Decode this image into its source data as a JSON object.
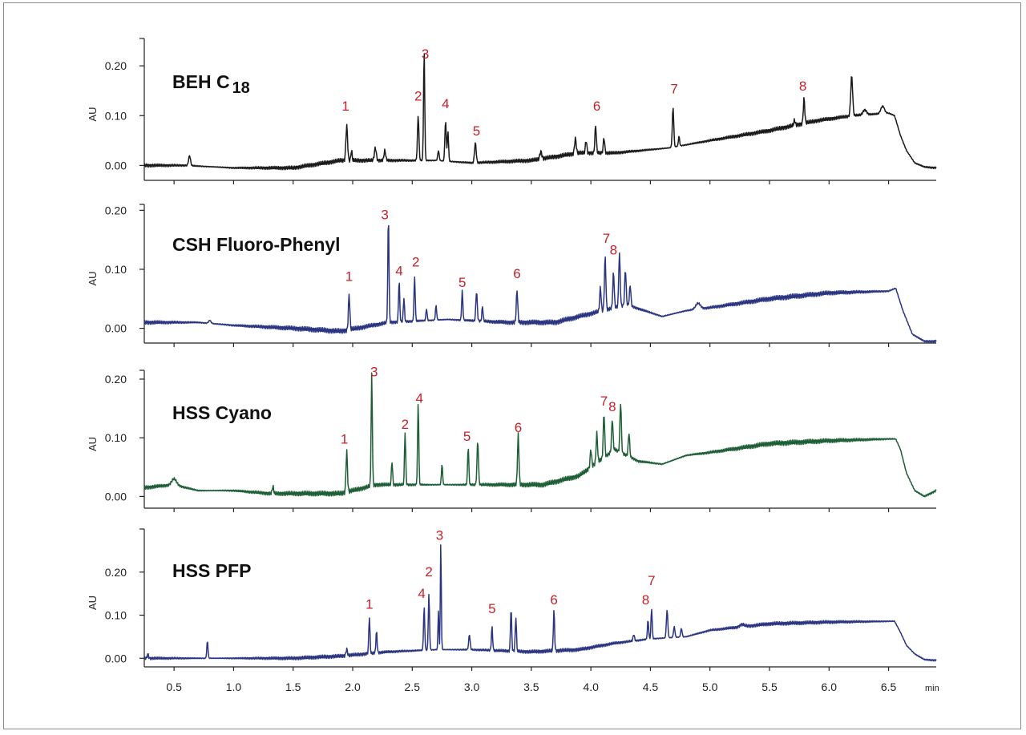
{
  "chart_data": [
    {
      "type": "line",
      "title": "BEH C",
      "title_sub": "18",
      "ylabel": "AU",
      "yticks": [
        0.0,
        0.1,
        0.2
      ],
      "ytick_labels": [
        "0.00",
        "0.10",
        "0.20"
      ],
      "ylim": [
        -0.03,
        0.255
      ],
      "color": "#1a1a1a",
      "baseline": [
        [
          0.25,
          0.0
        ],
        [
          0.6,
          0.0
        ],
        [
          1.0,
          -0.005
        ],
        [
          1.5,
          -0.005
        ],
        [
          1.9,
          0.01
        ],
        [
          2.3,
          0.01
        ],
        [
          2.7,
          0.01
        ],
        [
          3.0,
          0.005
        ],
        [
          3.5,
          0.01
        ],
        [
          3.9,
          0.025
        ],
        [
          4.2,
          0.025
        ],
        [
          4.65,
          0.035
        ],
        [
          5.0,
          0.05
        ],
        [
          5.5,
          0.07
        ],
        [
          5.9,
          0.09
        ],
        [
          6.2,
          0.1
        ],
        [
          6.5,
          0.105
        ],
        [
          6.55,
          0.1
        ],
        [
          6.6,
          0.06
        ],
        [
          6.65,
          0.03
        ],
        [
          6.72,
          0.005
        ],
        [
          6.8,
          -0.003
        ],
        [
          6.9,
          -0.005
        ]
      ],
      "peaks": [
        [
          0.63,
          0.02,
          0.008
        ],
        [
          1.95,
          0.07,
          0.007
        ],
        [
          1.99,
          0.02,
          0.005
        ],
        [
          2.19,
          0.025,
          0.008
        ],
        [
          2.27,
          0.02,
          0.007
        ],
        [
          2.55,
          0.09,
          0.006
        ],
        [
          2.6,
          0.22,
          0.005
        ],
        [
          2.72,
          0.02,
          0.006
        ],
        [
          2.78,
          0.08,
          0.006
        ],
        [
          2.8,
          0.06,
          0.005
        ],
        [
          3.03,
          0.04,
          0.007
        ],
        [
          3.58,
          0.015,
          0.008
        ],
        [
          3.87,
          0.03,
          0.007
        ],
        [
          3.96,
          0.025,
          0.006
        ],
        [
          4.04,
          0.055,
          0.006
        ],
        [
          4.11,
          0.03,
          0.006
        ],
        [
          4.69,
          0.08,
          0.006
        ],
        [
          4.74,
          0.02,
          0.005
        ],
        [
          5.79,
          0.05,
          0.006
        ],
        [
          5.71,
          0.01,
          0.006
        ],
        [
          6.19,
          0.08,
          0.008
        ],
        [
          6.3,
          0.01,
          0.015
        ],
        [
          6.45,
          0.015,
          0.015
        ]
      ],
      "peak_labels": [
        {
          "label": "1",
          "x": 1.94,
          "y": 0.11
        },
        {
          "label": "3",
          "x": 2.61,
          "y": 0.215
        },
        {
          "label": "2",
          "x": 2.55,
          "y": 0.13
        },
        {
          "label": "4",
          "x": 2.78,
          "y": 0.115
        },
        {
          "label": "5",
          "x": 3.04,
          "y": 0.06
        },
        {
          "label": "6",
          "x": 4.05,
          "y": 0.11
        },
        {
          "label": "7",
          "x": 4.7,
          "y": 0.145
        },
        {
          "label": "8",
          "x": 5.78,
          "y": 0.15
        }
      ]
    },
    {
      "type": "line",
      "title": "CSH Fluoro-Phenyl",
      "ylabel": "AU",
      "yticks": [
        0.0,
        0.1,
        0.2
      ],
      "ytick_labels": [
        "0.00",
        "0.10",
        "0.20"
      ],
      "ylim": [
        -0.025,
        0.21
      ],
      "color": "#2a3480",
      "baseline": [
        [
          0.25,
          0.01
        ],
        [
          0.7,
          0.01
        ],
        [
          1.0,
          0.005
        ],
        [
          1.5,
          0.0
        ],
        [
          1.9,
          -0.005
        ],
        [
          2.3,
          0.01
        ],
        [
          2.8,
          0.015
        ],
        [
          3.3,
          0.01
        ],
        [
          3.7,
          0.01
        ],
        [
          4.0,
          0.025
        ],
        [
          4.3,
          0.04
        ],
        [
          4.6,
          0.02
        ],
        [
          4.8,
          0.03
        ],
        [
          5.0,
          0.035
        ],
        [
          5.5,
          0.05
        ],
        [
          6.0,
          0.06
        ],
        [
          6.5,
          0.063
        ],
        [
          6.56,
          0.068
        ],
        [
          6.62,
          0.03
        ],
        [
          6.7,
          -0.01
        ],
        [
          6.8,
          -0.022
        ],
        [
          6.9,
          -0.022
        ]
      ],
      "peaks": [
        [
          0.8,
          0.005,
          0.01
        ],
        [
          1.97,
          0.06,
          0.006
        ],
        [
          2.3,
          0.18,
          0.005
        ],
        [
          2.39,
          0.07,
          0.005
        ],
        [
          2.43,
          0.04,
          0.005
        ],
        [
          2.52,
          0.075,
          0.005
        ],
        [
          2.62,
          0.02,
          0.005
        ],
        [
          2.7,
          0.025,
          0.005
        ],
        [
          2.92,
          0.05,
          0.005
        ],
        [
          3.04,
          0.05,
          0.006
        ],
        [
          3.09,
          0.025,
          0.005
        ],
        [
          3.38,
          0.055,
          0.006
        ],
        [
          4.08,
          0.04,
          0.006
        ],
        [
          4.12,
          0.09,
          0.006
        ],
        [
          4.19,
          0.06,
          0.006
        ],
        [
          4.24,
          0.09,
          0.006
        ],
        [
          4.29,
          0.06,
          0.006
        ],
        [
          4.33,
          0.035,
          0.006
        ],
        [
          4.9,
          0.01,
          0.02
        ]
      ],
      "peak_labels": [
        {
          "label": "1",
          "x": 1.97,
          "y": 0.08
        },
        {
          "label": "3",
          "x": 2.27,
          "y": 0.185
        },
        {
          "label": "4",
          "x": 2.39,
          "y": 0.09
        },
        {
          "label": "2",
          "x": 2.53,
          "y": 0.105
        },
        {
          "label": "5",
          "x": 2.92,
          "y": 0.07
        },
        {
          "label": "6",
          "x": 3.38,
          "y": 0.085
        },
        {
          "label": "7",
          "x": 4.13,
          "y": 0.145
        },
        {
          "label": "8",
          "x": 4.19,
          "y": 0.125
        }
      ]
    },
    {
      "type": "line",
      "title": "HSS Cyano",
      "ylabel": "AU",
      "yticks": [
        0.0,
        0.1,
        0.2
      ],
      "ytick_labels": [
        "0.00",
        "0.10",
        "0.20"
      ],
      "ylim": [
        -0.02,
        0.215
      ],
      "color": "#1e5e36",
      "baseline": [
        [
          0.25,
          0.015
        ],
        [
          0.5,
          0.02
        ],
        [
          0.7,
          0.01
        ],
        [
          1.0,
          0.01
        ],
        [
          1.3,
          0.005
        ],
        [
          1.6,
          0.005
        ],
        [
          1.9,
          0.005
        ],
        [
          2.2,
          0.02
        ],
        [
          2.7,
          0.02
        ],
        [
          3.2,
          0.02
        ],
        [
          3.6,
          0.02
        ],
        [
          3.9,
          0.035
        ],
        [
          4.2,
          0.08
        ],
        [
          4.4,
          0.06
        ],
        [
          4.6,
          0.055
        ],
        [
          4.8,
          0.07
        ],
        [
          5.0,
          0.075
        ],
        [
          5.5,
          0.09
        ],
        [
          6.0,
          0.095
        ],
        [
          6.5,
          0.098
        ],
        [
          6.56,
          0.098
        ],
        [
          6.6,
          0.08
        ],
        [
          6.65,
          0.04
        ],
        [
          6.72,
          0.01
        ],
        [
          6.8,
          0.0
        ],
        [
          6.9,
          0.01
        ]
      ],
      "peaks": [
        [
          0.5,
          0.01,
          0.02
        ],
        [
          1.33,
          0.012,
          0.006
        ],
        [
          1.95,
          0.07,
          0.006
        ],
        [
          2.16,
          0.19,
          0.005
        ],
        [
          2.33,
          0.04,
          0.005
        ],
        [
          2.44,
          0.09,
          0.005
        ],
        [
          2.55,
          0.14,
          0.005
        ],
        [
          2.75,
          0.035,
          0.005
        ],
        [
          2.97,
          0.065,
          0.005
        ],
        [
          3.05,
          0.075,
          0.006
        ],
        [
          3.39,
          0.085,
          0.006
        ],
        [
          4.0,
          0.03,
          0.006
        ],
        [
          4.05,
          0.05,
          0.006
        ],
        [
          4.11,
          0.075,
          0.006
        ],
        [
          4.18,
          0.055,
          0.006
        ],
        [
          4.25,
          0.085,
          0.006
        ],
        [
          4.32,
          0.04,
          0.006
        ]
      ],
      "peak_labels": [
        {
          "label": "1",
          "x": 1.93,
          "y": 0.09
        },
        {
          "label": "3",
          "x": 2.18,
          "y": 0.205
        },
        {
          "label": "2",
          "x": 2.44,
          "y": 0.115
        },
        {
          "label": "4",
          "x": 2.56,
          "y": 0.16
        },
        {
          "label": "5",
          "x": 2.96,
          "y": 0.095
        },
        {
          "label": "6",
          "x": 3.39,
          "y": 0.11
        },
        {
          "label": "7",
          "x": 4.11,
          "y": 0.155
        },
        {
          "label": "8",
          "x": 4.18,
          "y": 0.145
        }
      ]
    },
    {
      "type": "line",
      "title": "HSS PFP",
      "ylabel": "AU",
      "yticks": [
        0.0,
        0.1,
        0.2
      ],
      "ytick_labels": [
        "0.00",
        "0.10",
        "0.20"
      ],
      "ylim": [
        -0.02,
        0.3
      ],
      "color": "#2a3480",
      "baseline": [
        [
          0.25,
          0.0
        ],
        [
          0.8,
          0.0
        ],
        [
          1.5,
          0.0
        ],
        [
          1.9,
          0.005
        ],
        [
          2.3,
          0.015
        ],
        [
          2.7,
          0.02
        ],
        [
          3.0,
          0.02
        ],
        [
          3.5,
          0.015
        ],
        [
          3.9,
          0.02
        ],
        [
          4.2,
          0.035
        ],
        [
          4.5,
          0.045
        ],
        [
          4.8,
          0.05
        ],
        [
          5.0,
          0.065
        ],
        [
          5.5,
          0.08
        ],
        [
          6.0,
          0.084
        ],
        [
          6.55,
          0.086
        ],
        [
          6.6,
          0.06
        ],
        [
          6.65,
          0.03
        ],
        [
          6.72,
          0.01
        ],
        [
          6.8,
          -0.003
        ],
        [
          6.9,
          -0.005
        ]
      ],
      "peaks": [
        [
          0.28,
          0.01,
          0.005
        ],
        [
          0.78,
          0.04,
          0.005
        ],
        [
          1.95,
          0.015,
          0.006
        ],
        [
          2.14,
          0.085,
          0.005
        ],
        [
          2.2,
          0.05,
          0.005
        ],
        [
          2.6,
          0.1,
          0.005
        ],
        [
          2.64,
          0.13,
          0.005
        ],
        [
          2.72,
          0.09,
          0.004
        ],
        [
          2.74,
          0.25,
          0.004
        ],
        [
          2.98,
          0.035,
          0.006
        ],
        [
          3.17,
          0.055,
          0.005
        ],
        [
          3.33,
          0.1,
          0.005
        ],
        [
          3.37,
          0.08,
          0.005
        ],
        [
          3.69,
          0.095,
          0.005
        ],
        [
          4.36,
          0.015,
          0.006
        ],
        [
          4.48,
          0.045,
          0.005
        ],
        [
          4.51,
          0.07,
          0.005
        ],
        [
          4.64,
          0.065,
          0.006
        ],
        [
          4.7,
          0.025,
          0.006
        ],
        [
          4.76,
          0.02,
          0.006
        ],
        [
          5.27,
          0.005,
          0.02
        ]
      ],
      "peak_labels": [
        {
          "label": "1",
          "x": 2.14,
          "y": 0.115
        },
        {
          "label": "4",
          "x": 2.58,
          "y": 0.14
        },
        {
          "label": "2",
          "x": 2.64,
          "y": 0.19
        },
        {
          "label": "3",
          "x": 2.73,
          "y": 0.275
        },
        {
          "label": "5",
          "x": 3.17,
          "y": 0.105
        },
        {
          "label": "6",
          "x": 3.69,
          "y": 0.125
        },
        {
          "label": "8",
          "x": 4.46,
          "y": 0.125
        },
        {
          "label": "7",
          "x": 4.51,
          "y": 0.17
        }
      ]
    }
  ],
  "x_axis": {
    "xlim": [
      0.25,
      6.9
    ],
    "ticks": [
      0.5,
      1.0,
      1.5,
      2.0,
      2.5,
      3.0,
      3.5,
      4.0,
      4.5,
      5.0,
      5.5,
      6.0,
      6.5
    ],
    "tick_labels": [
      "0.5",
      "1.0",
      "1.5",
      "2.0",
      "2.5",
      "3.0",
      "3.5",
      "4.0",
      "4.5",
      "5.0",
      "5.5",
      "6.0",
      "6.5"
    ],
    "unit": "min"
  }
}
